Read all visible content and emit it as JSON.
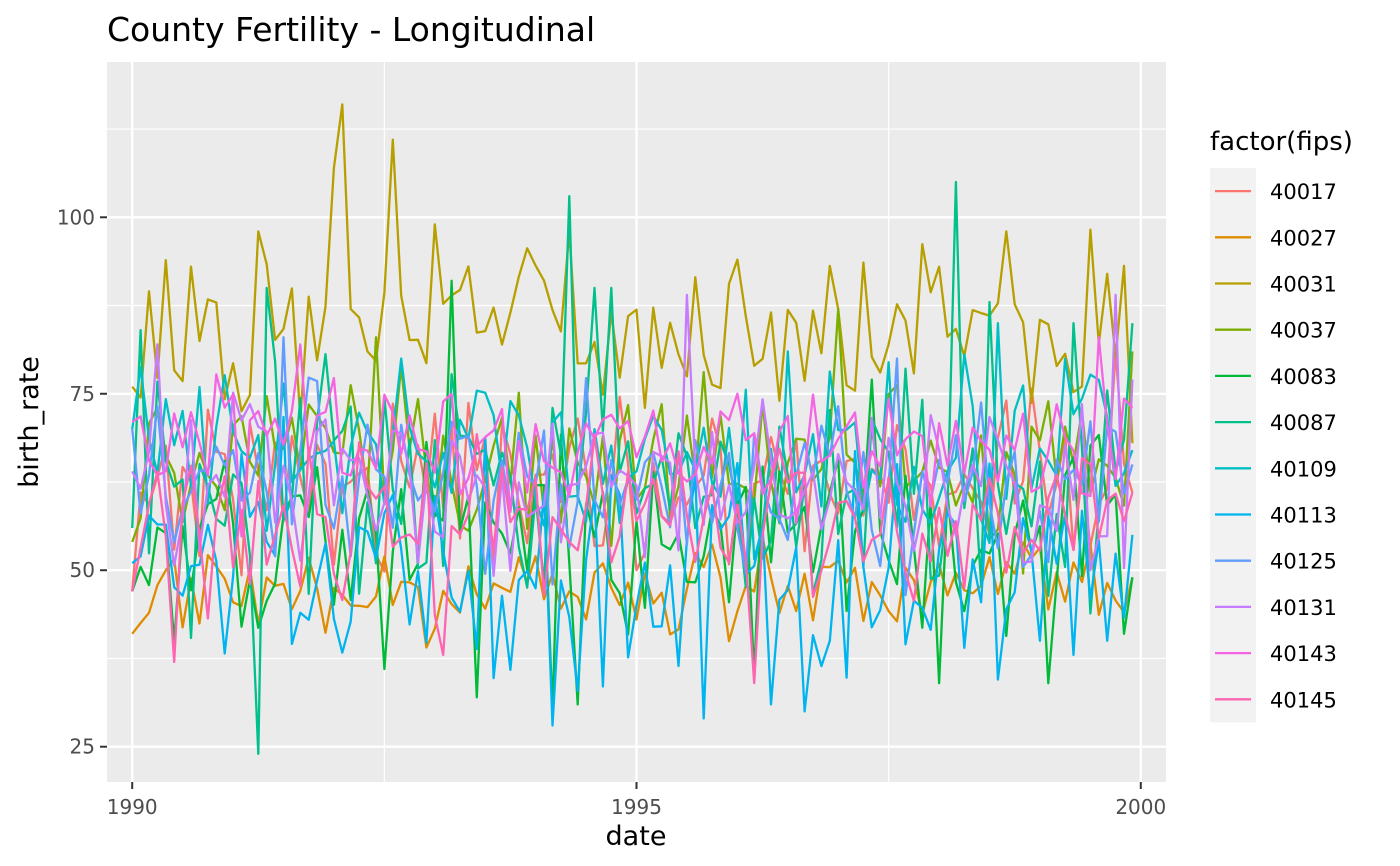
{
  "chart_data": {
    "type": "line",
    "title": "County Fertility - Longitudinal",
    "xlabel": "date",
    "ylabel": "birth_rate",
    "x_axis": {
      "type": "date",
      "start": "1990-01",
      "end": "1999-12",
      "frequency": "monthly",
      "ticks": [
        "1990",
        "1995",
        "2000"
      ]
    },
    "xlim": [
      "1989-10",
      "2000-04"
    ],
    "ylim": [
      20,
      122
    ],
    "y_ticks": [
      25,
      50,
      75,
      100
    ],
    "grid": true,
    "legend": {
      "title": "factor(fips)",
      "position": "right"
    },
    "series": [
      {
        "name": "40017",
        "color": "#F8766D",
        "base": 63,
        "spread": 7,
        "spikes": [
          [
            1999,
            10,
            81
          ]
        ],
        "anchors": [
          [
            1990,
            1,
            47
          ],
          [
            1995,
            1,
            50
          ],
          [
            1999,
            12,
            61
          ]
        ]
      },
      {
        "name": "40027",
        "color": "#DE8C00",
        "base": 47,
        "spread": 4,
        "anchors": [
          [
            1990,
            1,
            41
          ],
          [
            1990,
            5,
            50
          ],
          [
            1992,
            3,
            45
          ],
          [
            1995,
            1,
            43
          ],
          [
            1999,
            12,
            49
          ]
        ]
      },
      {
        "name": "40031",
        "color": "#B79F00",
        "base": 84,
        "spread": 8,
        "spikes": [
          [
            1991,
            4,
            98
          ],
          [
            1992,
            1,
            107
          ],
          [
            1992,
            2,
            116
          ],
          [
            1992,
            8,
            111
          ],
          [
            1993,
            1,
            99
          ],
          [
            1994,
            5,
            98
          ],
          [
            1996,
            1,
            94
          ],
          [
            1997,
            1,
            87
          ],
          [
            1997,
            7,
            82
          ],
          [
            1998,
            1,
            93
          ],
          [
            1998,
            9,
            98
          ],
          [
            1999,
            9,
            92
          ]
        ],
        "anchors": [
          [
            1990,
            1,
            76
          ],
          [
            1990,
            8,
            93
          ],
          [
            1992,
            3,
            87
          ],
          [
            1995,
            2,
            73
          ],
          [
            1996,
            6,
            74
          ],
          [
            1997,
            6,
            78
          ],
          [
            1999,
            12,
            68
          ]
        ]
      },
      {
        "name": "40037",
        "color": "#7CAE00",
        "base": 65,
        "spread": 8,
        "spikes": [
          [
            1992,
            6,
            83
          ],
          [
            1997,
            1,
            87
          ]
        ],
        "anchors": [
          [
            1990,
            1,
            54
          ],
          [
            1990,
            4,
            73
          ],
          [
            1995,
            1,
            60
          ],
          [
            1999,
            12,
            81
          ]
        ]
      },
      {
        "name": "40083",
        "color": "#00BA38",
        "base": 55,
        "spread": 9,
        "spikes": [
          [
            1991,
            2,
            42
          ],
          [
            1992,
            7,
            36
          ],
          [
            1993,
            3,
            91
          ],
          [
            1993,
            6,
            32
          ],
          [
            1994,
            3,
            30
          ],
          [
            1994,
            6,
            31
          ],
          [
            1996,
            3,
            35
          ],
          [
            1997,
            5,
            77
          ],
          [
            1998,
            1,
            34
          ],
          [
            1999,
            2,
            34
          ],
          [
            1999,
            11,
            41
          ]
        ],
        "anchors": [
          [
            1990,
            1,
            47
          ],
          [
            1995,
            1,
            57
          ],
          [
            1999,
            12,
            49
          ]
        ]
      },
      {
        "name": "40087",
        "color": "#00C08B",
        "base": 62,
        "spread": 10,
        "spikes": [
          [
            1990,
            2,
            84
          ],
          [
            1991,
            4,
            24
          ],
          [
            1991,
            5,
            90
          ],
          [
            1994,
            5,
            103
          ],
          [
            1994,
            8,
            90
          ],
          [
            1994,
            10,
            90
          ],
          [
            1998,
            3,
            105
          ],
          [
            1998,
            7,
            88
          ],
          [
            1999,
            5,
            85
          ]
        ],
        "anchors": [
          [
            1990,
            1,
            56
          ],
          [
            1995,
            1,
            58
          ],
          [
            1999,
            12,
            85
          ]
        ]
      },
      {
        "name": "40109",
        "color": "#00BFC4",
        "base": 67,
        "spread": 7,
        "spikes": [
          [
            1992,
            9,
            80
          ],
          [
            1996,
            7,
            81
          ],
          [
            1998,
            8,
            85
          ]
        ],
        "anchors": [
          [
            1990,
            1,
            70
          ],
          [
            1995,
            1,
            64
          ],
          [
            1999,
            12,
            67
          ]
        ]
      },
      {
        "name": "40113",
        "color": "#00B4F0",
        "base": 51,
        "spread": 10,
        "spikes": [
          [
            1994,
            3,
            28
          ],
          [
            1995,
            3,
            42
          ],
          [
            1995,
            9,
            29
          ],
          [
            1996,
            5,
            31
          ],
          [
            1996,
            9,
            30
          ],
          [
            1998,
            4,
            39
          ],
          [
            1999,
            1,
            40
          ],
          [
            1999,
            5,
            38
          ],
          [
            1999,
            9,
            40
          ]
        ],
        "anchors": [
          [
            1990,
            1,
            51
          ],
          [
            1995,
            1,
            45
          ],
          [
            1999,
            12,
            55
          ]
        ]
      },
      {
        "name": "40125",
        "color": "#619CFF",
        "base": 62,
        "spread": 8,
        "spikes": [
          [
            1991,
            7,
            83
          ],
          [
            1997,
            8,
            80
          ]
        ],
        "anchors": [
          [
            1990,
            1,
            70
          ],
          [
            1995,
            1,
            60
          ],
          [
            1999,
            12,
            65
          ]
        ]
      },
      {
        "name": "40131",
        "color": "#C77CFF",
        "base": 63,
        "spread": 8,
        "spikes": [
          [
            1990,
            4,
            82
          ],
          [
            1995,
            7,
            89
          ],
          [
            1999,
            10,
            89
          ]
        ],
        "anchors": [
          [
            1990,
            1,
            64
          ],
          [
            1995,
            1,
            62
          ],
          [
            1999,
            12,
            77
          ]
        ]
      },
      {
        "name": "40143",
        "color": "#F564E3",
        "base": 68,
        "spread": 6,
        "spikes": [
          [
            1991,
            9,
            82
          ],
          [
            1999,
            8,
            83
          ]
        ],
        "anchors": [
          [
            1990,
            1,
            71
          ],
          [
            1995,
            1,
            66
          ],
          [
            1999,
            12,
            73
          ]
        ]
      },
      {
        "name": "40145",
        "color": "#FF64B0",
        "base": 57,
        "spread": 7,
        "spikes": [
          [
            1990,
            6,
            37
          ],
          [
            1993,
            2,
            38
          ],
          [
            1996,
            3,
            34
          ]
        ],
        "anchors": [
          [
            1990,
            1,
            47
          ],
          [
            1995,
            1,
            57
          ],
          [
            1999,
            12,
            61
          ]
        ]
      }
    ]
  }
}
